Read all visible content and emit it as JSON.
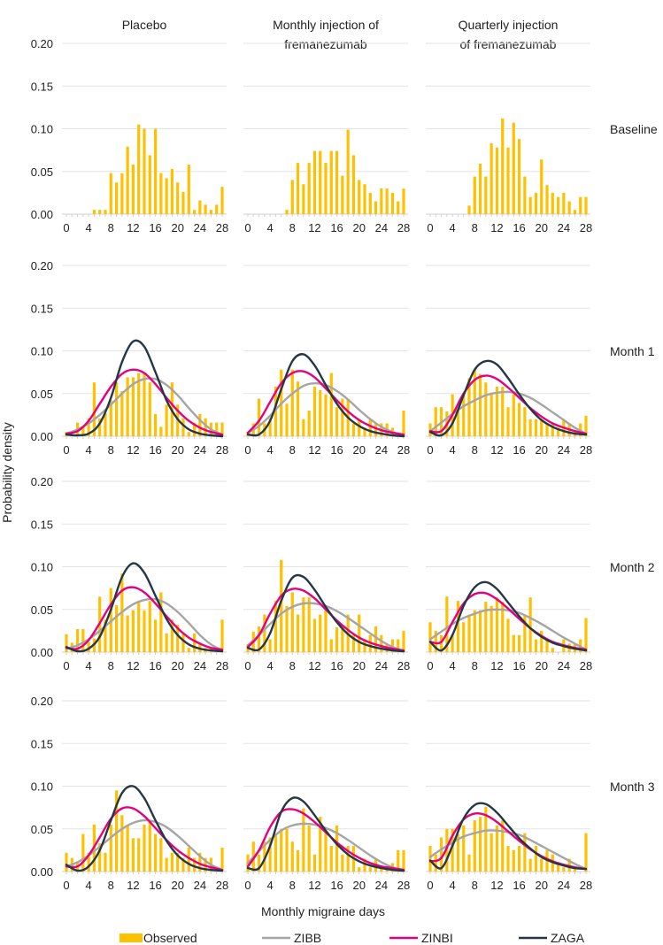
{
  "chart_data": {
    "type": "bar",
    "xlabel": "Monthly migraine days",
    "ylabel": "Probability density",
    "ylim": [
      0,
      0.2
    ],
    "xlim": [
      0,
      28
    ],
    "x_ticks": [
      "0",
      "4",
      "8",
      "12",
      "16",
      "20",
      "24",
      "28"
    ],
    "y_ticks": [
      "0.00",
      "0.05",
      "0.10",
      "0.15",
      "0.20"
    ],
    "grid": true,
    "legend_position": "bottom",
    "columns": [
      {
        "title_line1": "Placebo",
        "title_line2": ""
      },
      {
        "title_line1": "Monthly injection of",
        "title_line2": "fremanezumab"
      },
      {
        "title_line1": "Quarterly injection",
        "title_line2": "of fremanezumab"
      }
    ],
    "rows": [
      "Baseline",
      "Month 1",
      "Month 2",
      "Month 3"
    ],
    "legend": [
      {
        "name": "Observed",
        "type": "bar",
        "color": "#FFC000"
      },
      {
        "name": "ZIBB",
        "type": "line",
        "color": "#A5A5A5"
      },
      {
        "name": "ZINBI",
        "type": "line",
        "color": "#E6007E"
      },
      {
        "name": "ZAGA",
        "type": "line",
        "color": "#253746"
      }
    ],
    "curve_x": [
      0,
      2,
      4,
      6,
      8,
      10,
      12,
      14,
      16,
      18,
      20,
      22,
      24,
      26,
      28
    ],
    "panels": [
      {
        "row": 0,
        "col": 0,
        "observed": [
          0,
          0,
          0,
          0,
          0,
          0.005,
          0.005,
          0.005,
          0.048,
          0.037,
          0.048,
          0.079,
          0.058,
          0.105,
          0.1,
          0.069,
          0.1,
          0.048,
          0.042,
          0.053,
          0.037,
          0.026,
          0.058,
          0.005,
          0.016,
          0.011,
          0.005,
          0.011,
          0.032
        ]
      },
      {
        "row": 0,
        "col": 1,
        "observed": [
          0,
          0,
          0,
          0,
          0,
          0,
          0,
          0.005,
          0.04,
          0.06,
          0.035,
          0.06,
          0.074,
          0.074,
          0.06,
          0.074,
          0.074,
          0.045,
          0.099,
          0.069,
          0.04,
          0.035,
          0.025,
          0.015,
          0.03,
          0.03,
          0.025,
          0.015,
          0.03
        ]
      },
      {
        "row": 0,
        "col": 2,
        "observed": [
          0,
          0,
          0,
          0,
          0,
          0,
          0,
          0.01,
          0.044,
          0.059,
          0.044,
          0.083,
          0.078,
          0.112,
          0.078,
          0.107,
          0.088,
          0.044,
          0.02,
          0.025,
          0.064,
          0.034,
          0.025,
          0.02,
          0.025,
          0.015,
          0.005,
          0.02,
          0.02
        ]
      },
      {
        "row": 1,
        "col": 0,
        "observed": [
          0.005,
          0,
          0.016,
          0.011,
          0.021,
          0.063,
          0.021,
          0.027,
          0.042,
          0.063,
          0.053,
          0.069,
          0.069,
          0.074,
          0.074,
          0.063,
          0.026,
          0.011,
          0.037,
          0.063,
          0.037,
          0.021,
          0.005,
          0.016,
          0.026,
          0.021,
          0.016,
          0.016,
          0.016
        ],
        "curves": {
          "ZIBB": [
            0.003,
            0.008,
            0.015,
            0.025,
            0.037,
            0.05,
            0.061,
            0.067,
            0.067,
            0.06,
            0.048,
            0.033,
            0.019,
            0.008,
            0.002
          ],
          "ZINBI": [
            0.003,
            0.006,
            0.018,
            0.038,
            0.058,
            0.073,
            0.078,
            0.074,
            0.061,
            0.045,
            0.03,
            0.018,
            0.01,
            0.005,
            0.002
          ],
          "ZAGA": [
            0.002,
            0.001,
            0.003,
            0.015,
            0.045,
            0.087,
            0.111,
            0.105,
            0.075,
            0.042,
            0.02,
            0.008,
            0.003,
            0.001,
            0
          ]
        }
      },
      {
        "row": 1,
        "col": 1,
        "observed": [
          0.005,
          0.015,
          0.044,
          0.015,
          0.021,
          0.058,
          0.078,
          0.038,
          0.078,
          0.064,
          0.02,
          0.03,
          0.058,
          0.054,
          0.049,
          0.074,
          0.034,
          0.044,
          0.044,
          0.015,
          0.02,
          0.01,
          0.02,
          0.015,
          0.015,
          0.015,
          0.01,
          0,
          0.03
        ],
        "curves": {
          "ZIBB": [
            0.004,
            0.012,
            0.024,
            0.038,
            0.05,
            0.059,
            0.062,
            0.06,
            0.053,
            0.043,
            0.031,
            0.02,
            0.011,
            0.005,
            0.001
          ],
          "ZINBI": [
            0.004,
            0.018,
            0.04,
            0.062,
            0.074,
            0.076,
            0.069,
            0.056,
            0.042,
            0.029,
            0.019,
            0.012,
            0.007,
            0.004,
            0.002
          ],
          "ZAGA": [
            0.002,
            0.002,
            0.018,
            0.055,
            0.088,
            0.096,
            0.083,
            0.06,
            0.038,
            0.022,
            0.012,
            0.006,
            0.003,
            0.001,
            0
          ]
        }
      },
      {
        "row": 1,
        "col": 2,
        "observed": [
          0.015,
          0.034,
          0.034,
          0.029,
          0.049,
          0.034,
          0.049,
          0.068,
          0.078,
          0.073,
          0.063,
          0.049,
          0.058,
          0.058,
          0.034,
          0.049,
          0.039,
          0.034,
          0.02,
          0.02,
          0.02,
          0.015,
          0.015,
          0.01,
          0.02,
          0.015,
          0.005,
          0.015,
          0.024
        ],
        "curves": {
          "ZIBB": [
            0.006,
            0.016,
            0.026,
            0.035,
            0.042,
            0.048,
            0.051,
            0.052,
            0.05,
            0.045,
            0.037,
            0.028,
            0.019,
            0.01,
            0.003
          ],
          "ZINBI": [
            0.006,
            0.006,
            0.025,
            0.05,
            0.066,
            0.071,
            0.067,
            0.057,
            0.045,
            0.033,
            0.023,
            0.015,
            0.01,
            0.006,
            0.003
          ],
          "ZAGA": [
            0.005,
            0.001,
            0.015,
            0.048,
            0.078,
            0.088,
            0.084,
            0.068,
            0.049,
            0.032,
            0.019,
            0.011,
            0.006,
            0.003,
            0.002
          ]
        }
      },
      {
        "row": 2,
        "col": 0,
        "observed": [
          0.021,
          0.011,
          0.027,
          0.027,
          0.012,
          0.016,
          0.065,
          0.038,
          0.075,
          0.055,
          0.092,
          0.043,
          0.049,
          0.06,
          0.049,
          0.06,
          0.038,
          0.07,
          0.022,
          0.038,
          0.032,
          0.021,
          0.005,
          0.022,
          0.011,
          0.005,
          0.005,
          0,
          0.038
        ],
        "curves": {
          "ZIBB": [
            0.004,
            0.008,
            0.015,
            0.025,
            0.036,
            0.047,
            0.056,
            0.061,
            0.062,
            0.057,
            0.047,
            0.034,
            0.02,
            0.009,
            0.002
          ],
          "ZINBI": [
            0.005,
            0.004,
            0.014,
            0.034,
            0.056,
            0.072,
            0.076,
            0.07,
            0.057,
            0.042,
            0.028,
            0.017,
            0.01,
            0.005,
            0.003
          ],
          "ZAGA": [
            0.006,
            0.001,
            0.004,
            0.018,
            0.05,
            0.088,
            0.104,
            0.093,
            0.066,
            0.039,
            0.02,
            0.009,
            0.004,
            0.002,
            0.001
          ]
        }
      },
      {
        "row": 2,
        "col": 1,
        "observed": [
          0.009,
          0.024,
          0.03,
          0.044,
          0.015,
          0.06,
          0.108,
          0.054,
          0.07,
          0.044,
          0.064,
          0.064,
          0.039,
          0.044,
          0.049,
          0.015,
          0.029,
          0.029,
          0.044,
          0.02,
          0.044,
          0.015,
          0.02,
          0.03,
          0.02,
          0.01,
          0.015,
          0.015,
          0.025
        ],
        "curves": {
          "ZIBB": [
            0.008,
            0.02,
            0.033,
            0.045,
            0.053,
            0.057,
            0.057,
            0.054,
            0.048,
            0.04,
            0.031,
            0.022,
            0.013,
            0.006,
            0.001
          ],
          "ZINBI": [
            0.006,
            0.02,
            0.045,
            0.066,
            0.074,
            0.072,
            0.063,
            0.05,
            0.037,
            0.026,
            0.017,
            0.011,
            0.007,
            0.004,
            0.002
          ],
          "ZAGA": [
            0.005,
            0.003,
            0.022,
            0.06,
            0.087,
            0.088,
            0.073,
            0.053,
            0.035,
            0.021,
            0.012,
            0.007,
            0.004,
            0.002,
            0.001
          ]
        }
      },
      {
        "row": 2,
        "col": 2,
        "observed": [
          0.035,
          0.025,
          0.02,
          0.065,
          0.02,
          0.06,
          0.035,
          0.044,
          0.049,
          0.049,
          0.059,
          0.054,
          0.064,
          0.059,
          0.039,
          0.02,
          0.02,
          0.044,
          0.064,
          0.015,
          0.025,
          0.015,
          0.005,
          0,
          0.015,
          0.01,
          0.01,
          0.015,
          0.04
        ],
        "curves": {
          "ZIBB": [
            0.015,
            0.024,
            0.033,
            0.04,
            0.045,
            0.049,
            0.05,
            0.049,
            0.046,
            0.04,
            0.033,
            0.025,
            0.017,
            0.01,
            0.003
          ],
          "ZINBI": [
            0.012,
            0.012,
            0.035,
            0.057,
            0.068,
            0.069,
            0.062,
            0.051,
            0.039,
            0.028,
            0.019,
            0.012,
            0.008,
            0.005,
            0.003
          ],
          "ZAGA": [
            0.012,
            0.002,
            0.02,
            0.054,
            0.076,
            0.082,
            0.074,
            0.058,
            0.042,
            0.028,
            0.018,
            0.011,
            0.007,
            0.004,
            0.002
          ]
        }
      },
      {
        "row": 3,
        "col": 0,
        "observed": [
          0.022,
          0.016,
          0.011,
          0.044,
          0.022,
          0.055,
          0.033,
          0.022,
          0.055,
          0.095,
          0.066,
          0.055,
          0.039,
          0.039,
          0.055,
          0.06,
          0.044,
          0.039,
          0.016,
          0.022,
          0.022,
          0.016,
          0.028,
          0.016,
          0.022,
          0.016,
          0.016,
          0,
          0.028
        ],
        "curves": {
          "ZIBB": [
            0.006,
            0.011,
            0.019,
            0.029,
            0.04,
            0.05,
            0.057,
            0.06,
            0.058,
            0.052,
            0.042,
            0.03,
            0.018,
            0.008,
            0.002
          ],
          "ZINBI": [
            0.006,
            0.006,
            0.019,
            0.04,
            0.062,
            0.074,
            0.074,
            0.065,
            0.051,
            0.037,
            0.025,
            0.016,
            0.009,
            0.005,
            0.002
          ],
          "ZAGA": [
            0.008,
            0.001,
            0.006,
            0.025,
            0.06,
            0.092,
            0.1,
            0.086,
            0.06,
            0.036,
            0.019,
            0.009,
            0.004,
            0.002,
            0.001
          ]
        }
      },
      {
        "row": 3,
        "col": 1,
        "observed": [
          0.02,
          0.035,
          0.02,
          0.035,
          0.04,
          0.045,
          0.05,
          0.05,
          0.035,
          0.025,
          0.074,
          0.054,
          0.02,
          0.064,
          0.045,
          0.03,
          0.054,
          0.02,
          0.03,
          0.03,
          0.005,
          0.015,
          0.005,
          0.015,
          0.005,
          0.005,
          0.01,
          0.025,
          0.025
        ],
        "curves": {
          "ZIBB": [
            0.01,
            0.024,
            0.037,
            0.048,
            0.054,
            0.056,
            0.055,
            0.051,
            0.045,
            0.037,
            0.028,
            0.019,
            0.011,
            0.005,
            0.001
          ],
          "ZINBI": [
            0.006,
            0.025,
            0.052,
            0.07,
            0.073,
            0.068,
            0.058,
            0.046,
            0.034,
            0.024,
            0.016,
            0.01,
            0.006,
            0.004,
            0.002
          ],
          "ZAGA": [
            0.004,
            0.004,
            0.03,
            0.07,
            0.086,
            0.082,
            0.066,
            0.048,
            0.032,
            0.02,
            0.012,
            0.007,
            0.004,
            0.002,
            0.001
          ]
        }
      },
      {
        "row": 3,
        "col": 2,
        "observed": [
          0.03,
          0.02,
          0.04,
          0.05,
          0.05,
          0.044,
          0.054,
          0.02,
          0.06,
          0.064,
          0.076,
          0.045,
          0.054,
          0.06,
          0.03,
          0.025,
          0.03,
          0.045,
          0.015,
          0.03,
          0.015,
          0.025,
          0.02,
          0.01,
          0.005,
          0.015,
          0.005,
          0,
          0.045
        ],
        "curves": {
          "ZIBB": [
            0.017,
            0.026,
            0.034,
            0.041,
            0.045,
            0.048,
            0.048,
            0.046,
            0.043,
            0.037,
            0.03,
            0.023,
            0.016,
            0.009,
            0.003
          ],
          "ZINBI": [
            0.012,
            0.016,
            0.042,
            0.061,
            0.068,
            0.066,
            0.058,
            0.047,
            0.036,
            0.026,
            0.018,
            0.012,
            0.008,
            0.005,
            0.003
          ],
          "ZAGA": [
            0.013,
            0.004,
            0.03,
            0.062,
            0.078,
            0.079,
            0.069,
            0.054,
            0.039,
            0.027,
            0.017,
            0.011,
            0.007,
            0.004,
            0.003
          ]
        }
      }
    ]
  }
}
